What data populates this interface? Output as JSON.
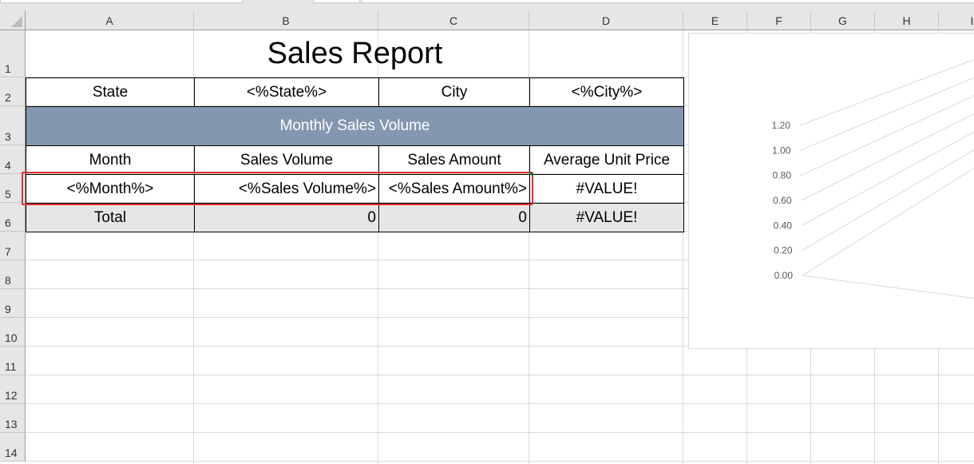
{
  "columns": [
    "A",
    "B",
    "C",
    "D",
    "E",
    "F",
    "G",
    "H",
    "I"
  ],
  "rows": [
    "1",
    "2",
    "3",
    "4",
    "5",
    "6",
    "7",
    "8",
    "9",
    "10",
    "11",
    "12",
    "13",
    "14"
  ],
  "sheet": {
    "title": "Sales Report",
    "state_label": "State",
    "state_value": "<%State%>",
    "city_label": "City",
    "city_value": "<%City%>",
    "section_title": "Monthly Sales Volume",
    "section_color": "#8497b0",
    "headers": [
      "Month",
      "Sales Volume",
      "Sales Amount",
      "Average Unit Price"
    ],
    "data_row": [
      "<%Month%>",
      "<%Sales Volume%>",
      "<%Sales Amount%>",
      "#VALUE!"
    ],
    "total_row": [
      "Total",
      "0",
      "0",
      "#VALUE!"
    ]
  },
  "chart_data": {
    "type": "bar",
    "style": "3d",
    "categories": [],
    "values": [],
    "ylim": [
      0,
      1.2
    ],
    "yticks": [
      "0.00",
      "0.20",
      "0.40",
      "0.60",
      "0.80",
      "1.00",
      "1.20"
    ],
    "grid": true
  },
  "selection_color": "#e03030"
}
